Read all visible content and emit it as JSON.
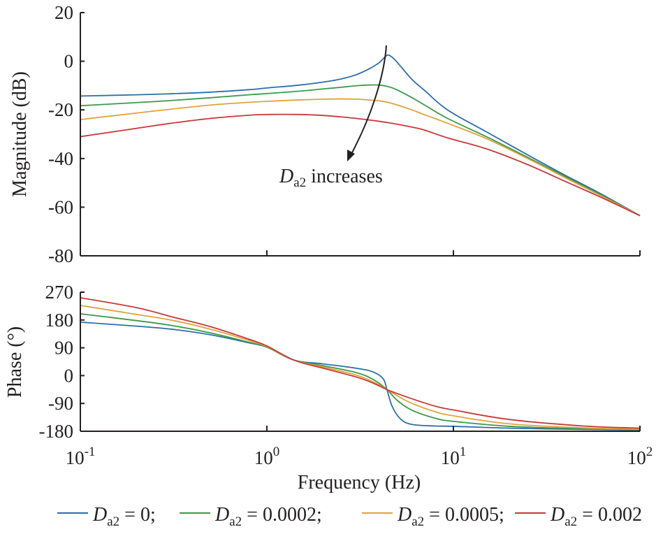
{
  "chart_data": [
    {
      "type": "line",
      "panel": "magnitude",
      "title": "",
      "xlabel": "",
      "ylabel": "Magnitude (dB)",
      "xscale": "log",
      "xlim": [
        0.1,
        100
      ],
      "ylim": [
        -80,
        20
      ],
      "yticks": [
        20,
        0,
        -20,
        -40,
        -60,
        -80
      ],
      "ytick_labels": [
        "20",
        "0",
        "-20",
        "-40",
        "-60",
        "-80"
      ],
      "grid": false,
      "annotation": {
        "text_italic": "D",
        "text_sub": "a2",
        "text_rest": " increases",
        "arrow": "curved arrow pointing downward across curves near 4.5 Hz"
      },
      "series": [
        {
          "name": "D_a2 = 0",
          "color": "#2e6ea8",
          "x": [
            0.1,
            0.2,
            0.3,
            0.5,
            0.8,
            1.0,
            1.5,
            2.0,
            2.5,
            3.0,
            3.5,
            4.0,
            4.3,
            4.5,
            4.8,
            5.2,
            6.0,
            7.0,
            9.3,
            15,
            25,
            40,
            60,
            100
          ],
          "y": [
            -14.3,
            -13.8,
            -13.4,
            -12.7,
            -11.7,
            -11.0,
            -9.8,
            -8.6,
            -7.3,
            -5.6,
            -3.3,
            -0.6,
            1.8,
            2.5,
            1.0,
            -2.0,
            -7.5,
            -12.0,
            -20.0,
            -29.0,
            -38.5,
            -47.0,
            -54.0,
            -63.5
          ]
        },
        {
          "name": "D_a2 = 0.0002",
          "color": "#3a9a4a",
          "x": [
            0.1,
            0.2,
            0.3,
            0.5,
            0.8,
            1.0,
            1.5,
            2.0,
            2.5,
            3.0,
            3.5,
            4.0,
            4.5,
            5.0,
            6.0,
            7.0,
            9.3,
            15,
            25,
            40,
            60,
            100
          ],
          "y": [
            -18.3,
            -17.0,
            -16.2,
            -15.0,
            -13.8,
            -13.3,
            -12.3,
            -11.4,
            -10.7,
            -10.1,
            -9.8,
            -9.8,
            -10.5,
            -11.8,
            -15.0,
            -18.0,
            -23.5,
            -31.0,
            -39.5,
            -47.5,
            -54.5,
            -63.5
          ]
        },
        {
          "name": "D_a2 = 0.0005",
          "color": "#e0a33a",
          "x": [
            0.1,
            0.2,
            0.3,
            0.5,
            0.8,
            1.0,
            1.5,
            2.0,
            2.5,
            3.0,
            3.5,
            4.0,
            4.5,
            5.0,
            6.0,
            7.0,
            9.3,
            15,
            25,
            40,
            60,
            100
          ],
          "y": [
            -24.0,
            -21.3,
            -19.8,
            -18.0,
            -16.9,
            -16.5,
            -15.9,
            -15.6,
            -15.5,
            -15.6,
            -15.9,
            -16.3,
            -17.0,
            -18.0,
            -20.0,
            -22.0,
            -25.5,
            -31.8,
            -40.0,
            -48.0,
            -54.8,
            -63.5
          ]
        },
        {
          "name": "D_a2 = 0.002",
          "color": "#c8393a",
          "x": [
            0.1,
            0.2,
            0.3,
            0.5,
            0.8,
            1.0,
            1.5,
            2.0,
            2.5,
            3.0,
            3.5,
            4.0,
            4.5,
            5.0,
            6.0,
            7.0,
            9.3,
            15,
            25,
            40,
            60,
            100
          ],
          "y": [
            -31.0,
            -27.6,
            -25.6,
            -23.5,
            -22.2,
            -21.9,
            -21.9,
            -22.3,
            -22.9,
            -23.5,
            -24.1,
            -24.7,
            -25.3,
            -25.9,
            -27.1,
            -28.3,
            -31.5,
            -36.0,
            -42.5,
            -49.5,
            -55.5,
            -63.5
          ]
        }
      ]
    },
    {
      "type": "line",
      "panel": "phase",
      "title": "",
      "xlabel": "Frequency (Hz)",
      "ylabel": "Phase (°)",
      "xscale": "log",
      "xlim": [
        0.1,
        100
      ],
      "ylim": [
        -180,
        270
      ],
      "xticks": [
        0.1,
        1,
        10,
        100
      ],
      "xtick_labels": [
        {
          "base": "10",
          "exp": "-1"
        },
        {
          "base": "10",
          "exp": "0"
        },
        {
          "base": "10",
          "exp": "1"
        },
        {
          "base": "10",
          "exp": "2"
        }
      ],
      "yticks": [
        270,
        180,
        90,
        0,
        -90,
        -180
      ],
      "ytick_labels": [
        "270",
        "180",
        "90",
        "0",
        "-90",
        "-180"
      ],
      "grid": false,
      "series": [
        {
          "name": "D_a2 = 0",
          "color": "#2e6ea8",
          "x": [
            0.1,
            0.2,
            0.31,
            0.5,
            0.8,
            1.0,
            1.4,
            2.0,
            3.0,
            3.7,
            4.2,
            4.4,
            4.7,
            5.2,
            6.0,
            8.0,
            10,
            20,
            50,
            100
          ],
          "y": [
            173,
            160,
            150,
            132,
            106,
            92,
            50,
            38,
            24,
            12,
            -10,
            -45,
            -100,
            -140,
            -158,
            -163,
            -164,
            -170,
            -174,
            -176
          ]
        },
        {
          "name": "D_a2 = 0.0002",
          "color": "#3a9a4a",
          "x": [
            0.1,
            0.2,
            0.31,
            0.5,
            0.8,
            1.0,
            1.4,
            2.0,
            3.0,
            3.7,
            4.4,
            5.0,
            6.0,
            8.0,
            10,
            20,
            50,
            100
          ],
          "y": [
            200,
            178,
            162,
            138,
            108,
            92,
            50,
            32,
            10,
            -12,
            -45,
            -80,
            -112,
            -138,
            -148,
            -164,
            -172,
            -175
          ]
        },
        {
          "name": "D_a2 = 0.0005",
          "color": "#e0a33a",
          "x": [
            0.1,
            0.2,
            0.31,
            0.5,
            0.8,
            1.0,
            1.4,
            2.0,
            3.0,
            3.7,
            4.4,
            5.0,
            6.0,
            8.0,
            10,
            20,
            50,
            100
          ],
          "y": [
            227,
            198,
            179,
            150,
            114,
            94,
            50,
            28,
            2,
            -20,
            -45,
            -65,
            -90,
            -117,
            -130,
            -156,
            -169,
            -173
          ]
        },
        {
          "name": "D_a2 = 0.002",
          "color": "#c8393a",
          "x": [
            0.1,
            0.2,
            0.31,
            0.5,
            0.8,
            1.0,
            1.4,
            2.0,
            3.0,
            3.7,
            4.4,
            5.0,
            6.0,
            8.0,
            10,
            20,
            50,
            100
          ],
          "y": [
            252,
            220,
            190,
            158,
            118,
            96,
            50,
            24,
            -4,
            -24,
            -45,
            -58,
            -75,
            -99,
            -111,
            -142,
            -163,
            -170
          ]
        }
      ]
    }
  ],
  "legend": {
    "placement": "bottom",
    "entries": [
      {
        "color": "#2e6ea8",
        "sym": "D",
        "sub": "a2",
        "rest": " = 0;"
      },
      {
        "color": "#3a9a4a",
        "sym": "D",
        "sub": "a2",
        "rest": " = 0.0002;"
      },
      {
        "color": "#e0a33a",
        "sym": "D",
        "sub": "a2",
        "rest": " = 0.0005;"
      },
      {
        "color": "#c8393a",
        "sym": "D",
        "sub": "a2",
        "rest": " = 0.002"
      }
    ]
  }
}
